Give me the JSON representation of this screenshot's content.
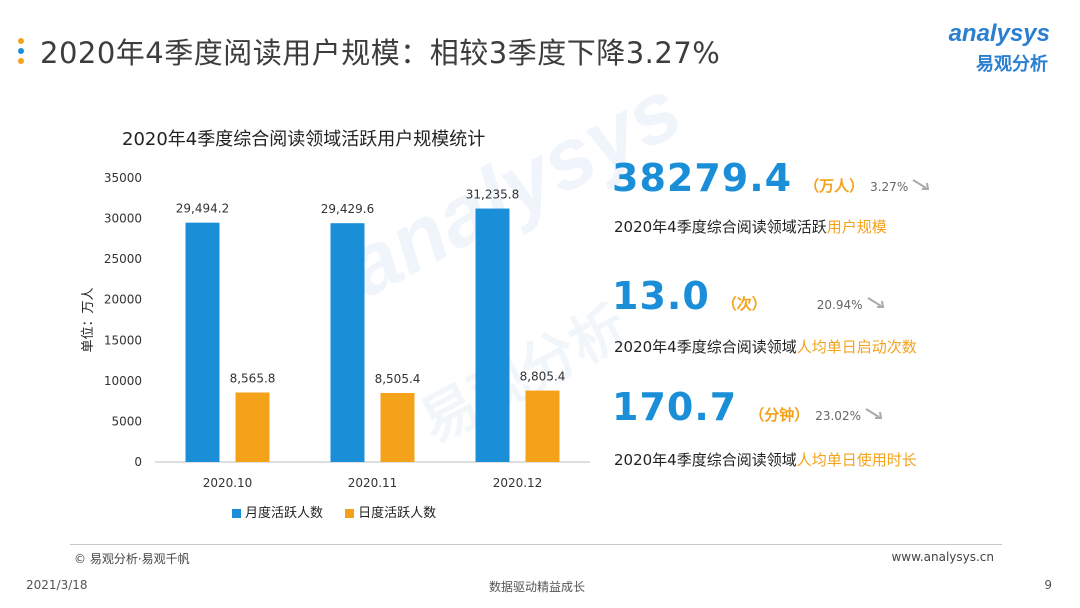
{
  "page": {
    "title": "2020年4季度阅读用户规模：相较3季度下降3.27%",
    "title_dot_colors": [
      "#f5a21b",
      "#1a8fd8",
      "#f5a21b"
    ]
  },
  "logo": {
    "text_en": "analysys",
    "text_cn": "易观分析"
  },
  "watermark": {
    "text_en": "analysys",
    "text_cn": "易观分析"
  },
  "chart_data": {
    "type": "bar",
    "title": "2020年4季度综合阅读领域活跃用户规模统计",
    "categories": [
      "2020.10",
      "2020.11",
      "2020.12"
    ],
    "series": [
      {
        "name": "月度活跃人数",
        "color": "#1a8fd8",
        "values": [
          29494.2,
          29429.6,
          31235.8
        ],
        "labels": [
          "29,494.2",
          "29,429.6",
          "31,235.8"
        ]
      },
      {
        "name": "日度活跃人数",
        "color": "#f5a21b",
        "values": [
          8565.8,
          8505.4,
          8805.4
        ],
        "labels": [
          "8,565.8",
          "8,505.4",
          "8,805.4"
        ]
      }
    ],
    "ylabel": "单位：万人",
    "ylim": [
      0,
      35000
    ],
    "yticks": [
      "0",
      "5000",
      "10000",
      "15000",
      "20000",
      "25000",
      "30000",
      "35000"
    ],
    "tick_values": [
      0,
      5000,
      10000,
      15000,
      20000,
      25000,
      30000,
      35000
    ],
    "grid": false,
    "legend_position": "bottom"
  },
  "kpis": [
    {
      "value": "38279.4",
      "unit": "（万人）",
      "change": "3.27%",
      "desc_plain": "2020年4季度综合阅读领域活跃",
      "desc_highlight": "用户规模",
      "arrow_icon": "down-arrow-icon"
    },
    {
      "value": "13.0",
      "unit": "（次）",
      "change": "20.94%",
      "desc_plain": "2020年4季度综合阅读领域",
      "desc_highlight": "人均单日启动次数",
      "arrow_icon": "down-arrow-icon"
    },
    {
      "value": "170.7",
      "unit": "（分钟）",
      "change": "23.02%",
      "desc_plain": "2020年4季度综合阅读领域",
      "desc_highlight": "人均单日使用时长",
      "arrow_icon": "down-arrow-icon"
    }
  ],
  "footer": {
    "copyright": "© 易观分析·易观千帆",
    "site": "www.analysys.cn",
    "date": "2021/3/18",
    "slogan": "数据驱动精益成长",
    "page_number": "9"
  }
}
